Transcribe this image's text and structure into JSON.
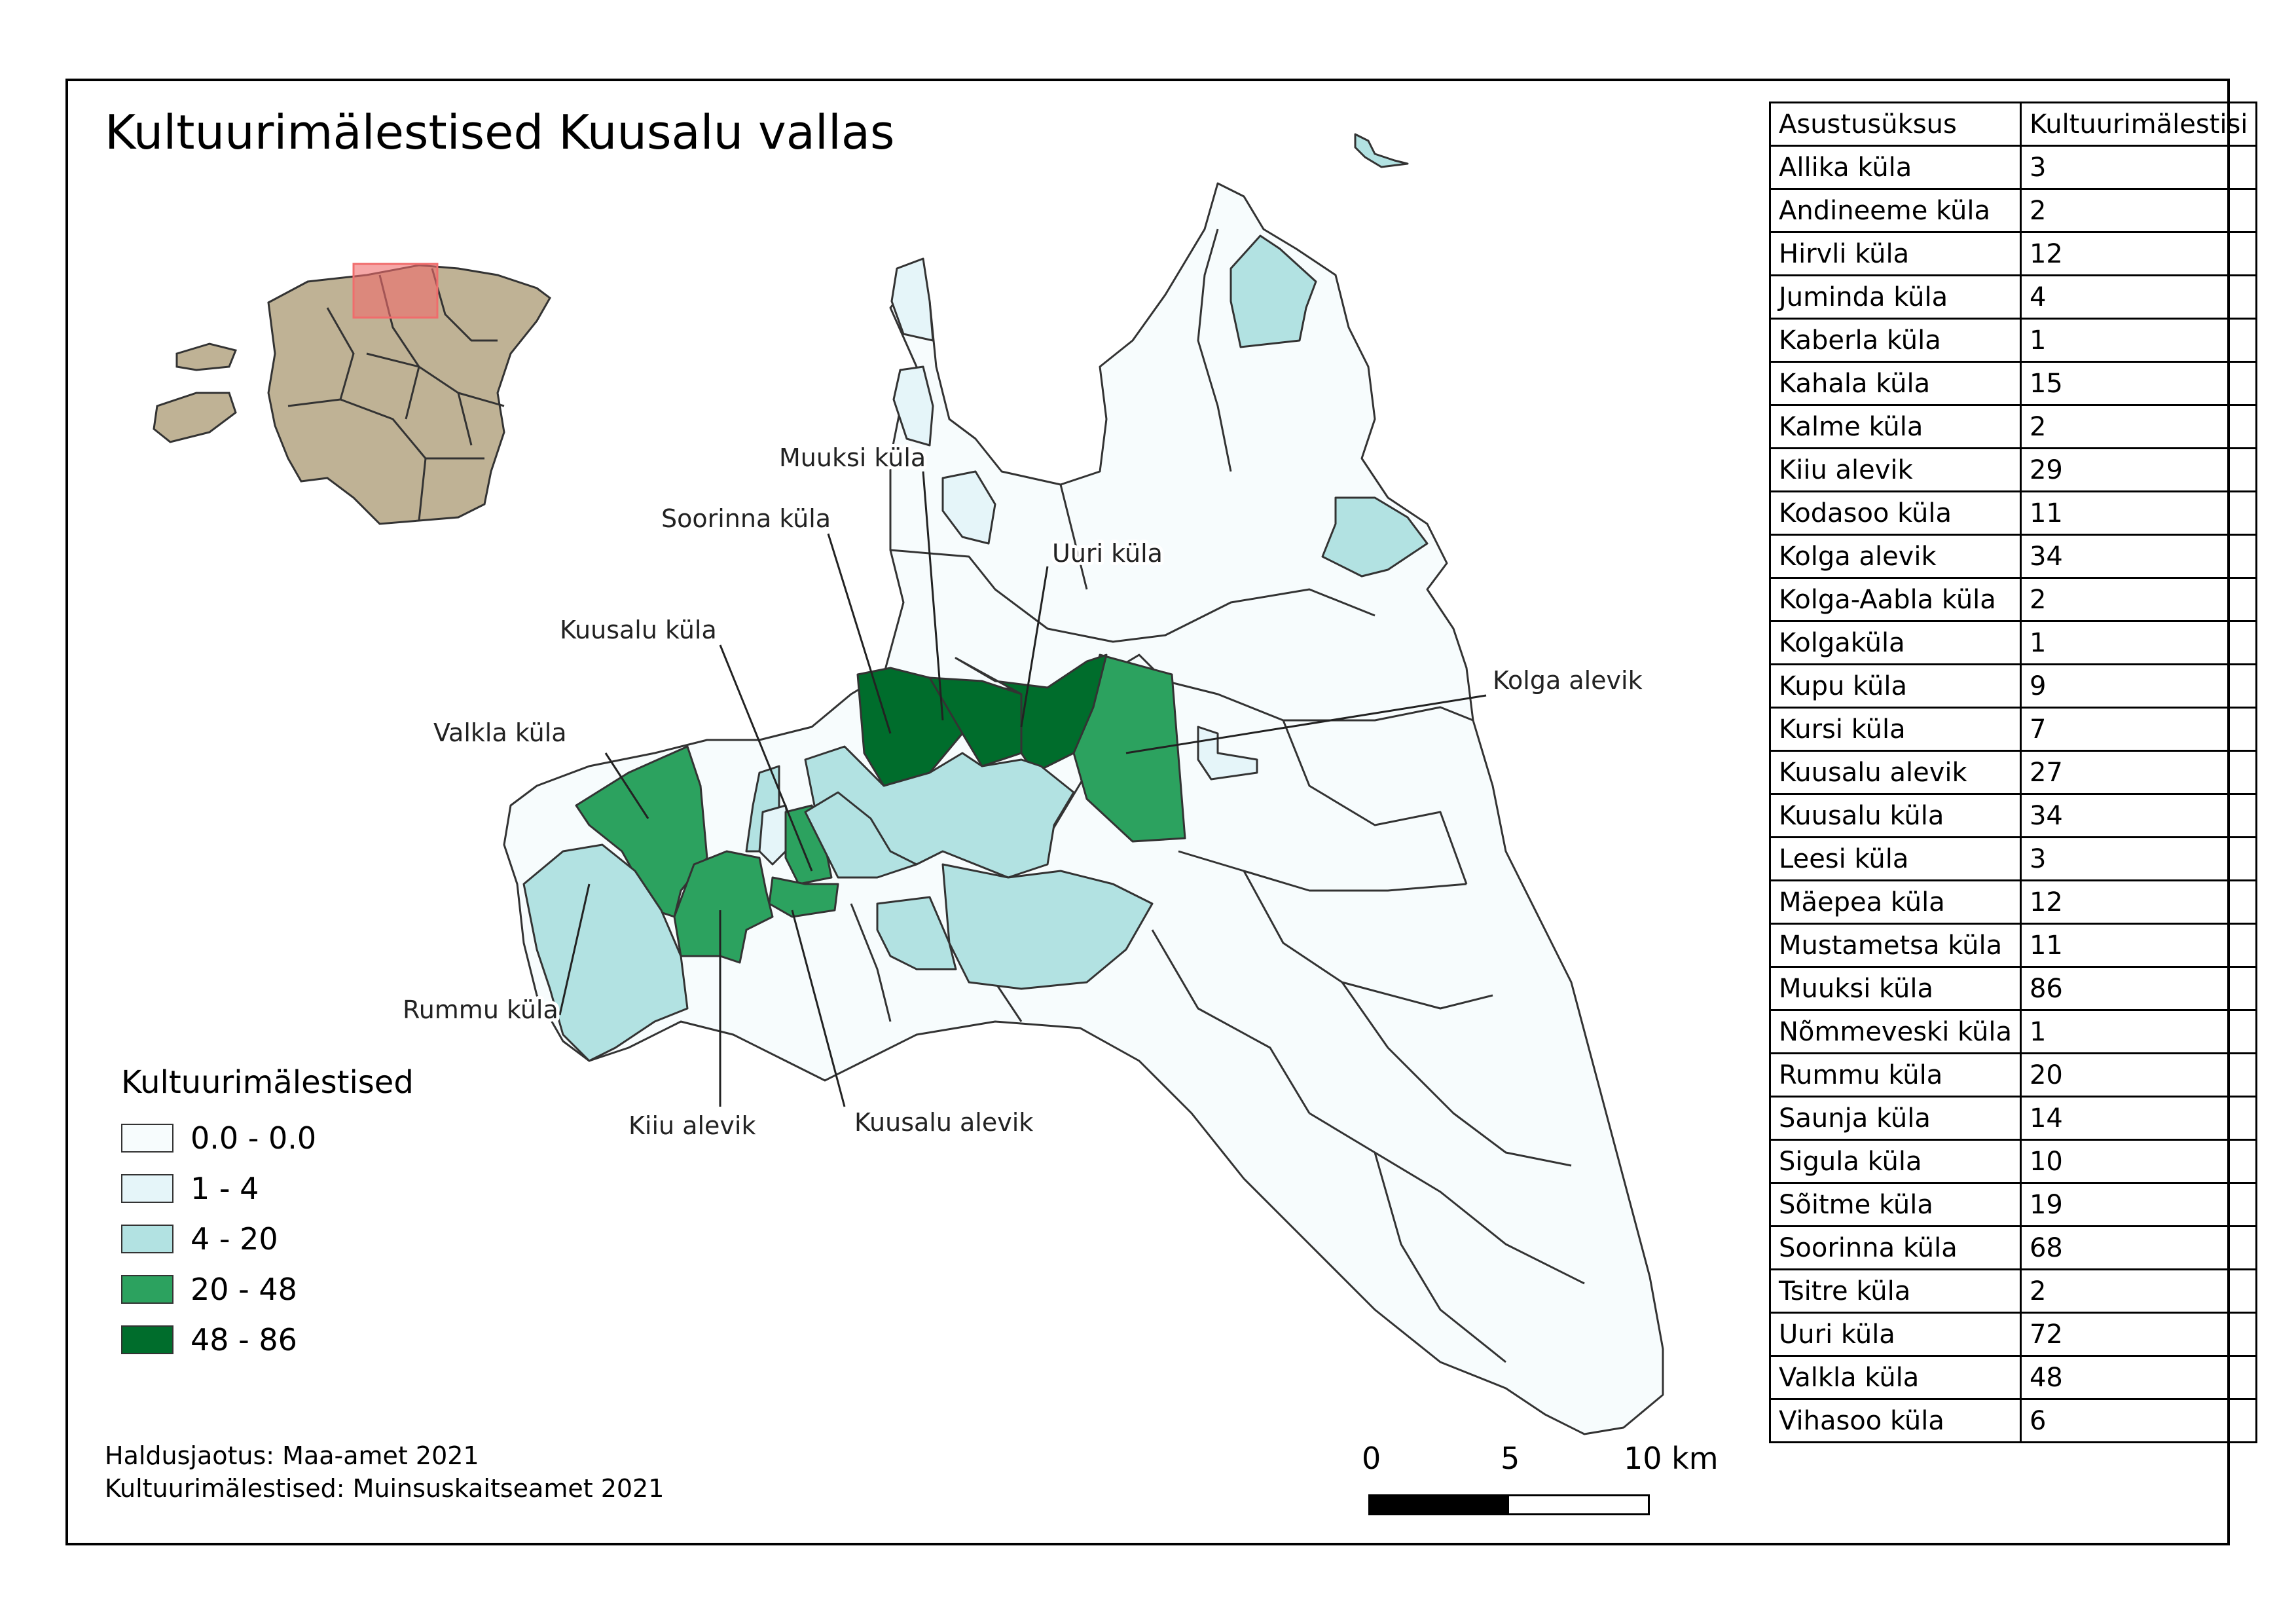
{
  "title": "Kultuurimälestised Kuusalu vallas",
  "colors": {
    "class0": "#f7fcfd",
    "class1": "#e5f5f9",
    "class2": "#b2e2e2",
    "class3": "#2ca25f",
    "class4": "#006d2c",
    "overview_land": "#bfb295",
    "overview_highlight": "#f06c6c"
  },
  "legend": {
    "title": "Kultuurimälestised",
    "items": [
      {
        "label": "0.0 - 0.0",
        "color": "#f7fcfd"
      },
      {
        "label": "1 - 4",
        "color": "#e5f5f9"
      },
      {
        "label": "4 - 20",
        "color": "#b2e2e2"
      },
      {
        "label": "20 - 48",
        "color": "#2ca25f"
      },
      {
        "label": "48 - 86",
        "color": "#006d2c"
      }
    ]
  },
  "map_labels": {
    "muuksi": "Muuksi küla",
    "soorinna": "Soorinna küla",
    "uuri": "Uuri küla",
    "kuusalu_kula": "Kuusalu küla",
    "kolga": "Kolga alevik",
    "valkla": "Valkla küla",
    "rummu": "Rummu küla",
    "kiiu": "Kiiu alevik",
    "kuusalu_alevik": "Kuusalu alevik"
  },
  "credits": {
    "line1": "Haldusjaotus: Maa-amet 2021",
    "line2": "Kultuurimälestised: Muinsuskaitseamet 2021"
  },
  "scale": {
    "tick0": "0",
    "tick1": "5",
    "tick2": "10 km"
  },
  "table": {
    "headers": [
      "Asustusüksus",
      "Kultuurimälestisi"
    ],
    "rows": [
      [
        "Allika küla",
        "3"
      ],
      [
        "Andineeme küla",
        "2"
      ],
      [
        "Hirvli küla",
        "12"
      ],
      [
        "Juminda küla",
        "4"
      ],
      [
        "Kaberla küla",
        "1"
      ],
      [
        "Kahala küla",
        "15"
      ],
      [
        "Kalme küla",
        "2"
      ],
      [
        "Kiiu alevik",
        "29"
      ],
      [
        "Kodasoo küla",
        "11"
      ],
      [
        "Kolga alevik",
        "34"
      ],
      [
        "Kolga-Aabla küla",
        "2"
      ],
      [
        "Kolgaküla",
        "1"
      ],
      [
        "Kupu küla",
        "9"
      ],
      [
        "Kursi küla",
        "7"
      ],
      [
        "Kuusalu alevik",
        "27"
      ],
      [
        "Kuusalu küla",
        "34"
      ],
      [
        "Leesi küla",
        "3"
      ],
      [
        "Mäepea küla",
        "12"
      ],
      [
        "Mustametsa küla",
        "11"
      ],
      [
        "Muuksi küla",
        "86"
      ],
      [
        "Nõmmeveski küla",
        "1"
      ],
      [
        "Rummu küla",
        "20"
      ],
      [
        "Saunja küla",
        "14"
      ],
      [
        "Sigula küla",
        "10"
      ],
      [
        "Sõitme küla",
        "19"
      ],
      [
        "Soorinna küla",
        "68"
      ],
      [
        "Tsitre küla",
        "2"
      ],
      [
        "Uuri küla",
        "72"
      ],
      [
        "Valkla küla",
        "48"
      ],
      [
        "Vihasoo küla",
        "6"
      ]
    ]
  }
}
